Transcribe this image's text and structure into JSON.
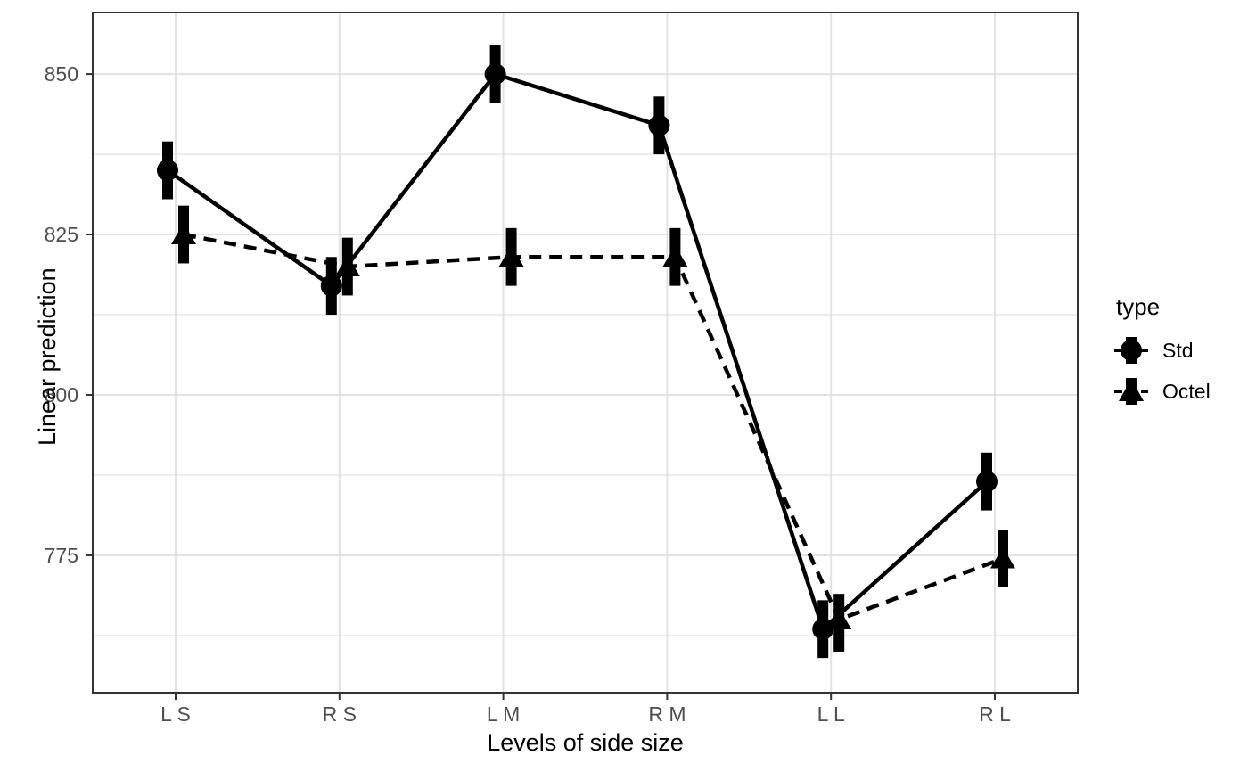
{
  "chart_data": {
    "type": "line",
    "geom": "pointrange-with-line",
    "title": "",
    "xlabel": "Levels of side size",
    "ylabel": "Linear prediction",
    "categories": [
      "L S",
      "R S",
      "L M",
      "R M",
      "L L",
      "R L"
    ],
    "y_ticks": [
      775,
      800,
      825,
      850
    ],
    "ylim": [
      753.6,
      859.6
    ],
    "grid": {
      "major": true,
      "minor": true
    },
    "legend": {
      "title": "type",
      "position": "right"
    },
    "series": [
      {
        "name": "Std",
        "marker": "circle",
        "linestyle": "solid",
        "values": [
          835,
          817,
          850,
          842,
          763.5,
          786.5
        ],
        "ci_low": [
          830.5,
          812.5,
          845.5,
          837.5,
          759,
          782
        ],
        "ci_high": [
          839.5,
          821.5,
          854.5,
          846.5,
          768,
          791
        ]
      },
      {
        "name": "Octel",
        "marker": "triangle",
        "linestyle": "dashed",
        "values": [
          825,
          820,
          821.5,
          821.5,
          765,
          774.5
        ],
        "ci_low": [
          820.5,
          815.5,
          817,
          817,
          760,
          770
        ],
        "ci_high": [
          829.5,
          824.5,
          826,
          826,
          769,
          779
        ]
      }
    ],
    "colors": {
      "series": "#000000",
      "axis_text": "#4D4D4D",
      "axis_title": "#000000",
      "panel_border": "#333333",
      "tick_mark": "#333333",
      "grid_major": "#E2E2E2",
      "grid_minor": "#ECECEC",
      "background": "#FFFFFF"
    }
  }
}
